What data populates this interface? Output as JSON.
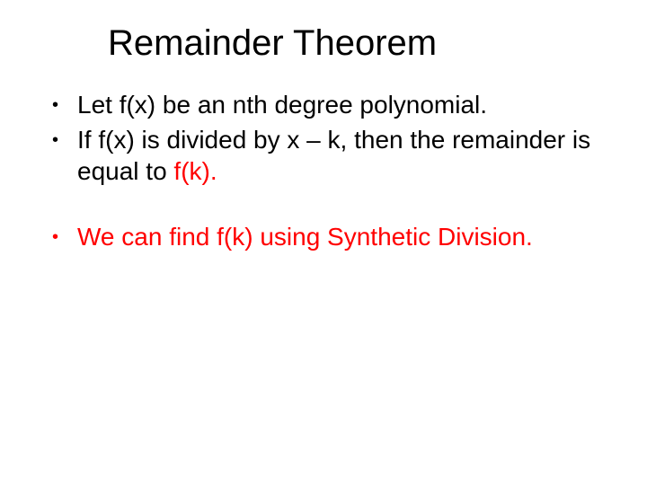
{
  "slide": {
    "title": "Remainder Theorem",
    "title_fontsize": 40,
    "body_fontsize": 28,
    "background_color": "#ffffff",
    "text_color": "#000000",
    "accent_color": "#ff0000",
    "bullets": [
      {
        "parts": [
          {
            "text": "Let f(x) be an nth degree polynomial.",
            "color": "#000000"
          }
        ],
        "bullet_color": "#000000"
      },
      {
        "parts": [
          {
            "text": "If f(x) is divided by x – k, then the remainder is equal to ",
            "color": "#000000"
          },
          {
            "text": "f(k).",
            "color": "#ff0000"
          }
        ],
        "bullet_color": "#000000"
      },
      {
        "parts": [
          {
            "text": "We can find f(k) using Synthetic Division.",
            "color": "#ff0000"
          }
        ],
        "bullet_color": "#ff0000",
        "space_before": true
      }
    ]
  }
}
